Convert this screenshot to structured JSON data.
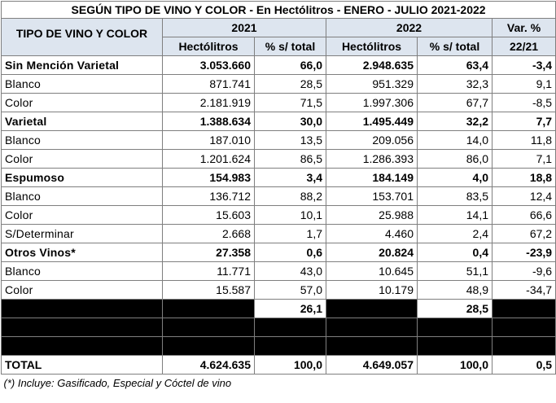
{
  "title": "SEGÚN TIPO DE VINO Y COLOR - En Hectólitros - ENERO - JULIO 2021-2022",
  "header": {
    "row_label": "TIPO DE VINO Y COLOR",
    "year_2021": "2021",
    "year_2022": "2022",
    "var_line1": "Var. %",
    "var_line2": "22/21",
    "hl": "Hectólitros",
    "pct": "% s/ total"
  },
  "rows": [
    {
      "label": "Sin Mención Varietal",
      "h21": "3.053.660",
      "p21": "66,0",
      "h22": "2.948.635",
      "p22": "63,4",
      "var": "-3,4",
      "bold": true
    },
    {
      "label": "Blanco",
      "h21": "871.741",
      "p21": "28,5",
      "h22": "951.329",
      "p22": "32,3",
      "var": "9,1",
      "bold": false
    },
    {
      "label": "Color",
      "h21": "2.181.919",
      "p21": "71,5",
      "h22": "1.997.306",
      "p22": "67,7",
      "var": "-8,5",
      "bold": false
    },
    {
      "label": "Varietal",
      "h21": "1.388.634",
      "p21": "30,0",
      "h22": "1.495.449",
      "p22": "32,2",
      "var": "7,7",
      "bold": true
    },
    {
      "label": "Blanco",
      "h21": "187.010",
      "p21": "13,5",
      "h22": "209.056",
      "p22": "14,0",
      "var": "11,8",
      "bold": false
    },
    {
      "label": "Color",
      "h21": "1.201.624",
      "p21": "86,5",
      "h22": "1.286.393",
      "p22": "86,0",
      "var": "7,1",
      "bold": false
    },
    {
      "label": "Espumoso",
      "h21": "154.983",
      "p21": "3,4",
      "h22": "184.149",
      "p22": "4,0",
      "var": "18,8",
      "bold": true
    },
    {
      "label": "Blanco",
      "h21": "136.712",
      "p21": "88,2",
      "h22": "153.701",
      "p22": "83,5",
      "var": "12,4",
      "bold": false
    },
    {
      "label": "Color",
      "h21": "15.603",
      "p21": "10,1",
      "h22": "25.988",
      "p22": "14,1",
      "var": "66,6",
      "bold": false
    },
    {
      "label": "S/Determinar",
      "h21": "2.668",
      "p21": "1,7",
      "h22": "4.460",
      "p22": "2,4",
      "var": "67,2",
      "bold": false
    },
    {
      "label": "Otros Vinos*",
      "h21": "27.358",
      "p21": "0,6",
      "h22": "20.824",
      "p22": "0,4",
      "var": "-23,9",
      "bold": true
    },
    {
      "label": "Blanco",
      "h21": "11.771",
      "p21": "43,0",
      "h22": "10.645",
      "p22": "51,1",
      "var": "-9,6",
      "bold": false
    },
    {
      "label": "Color",
      "h21": "15.587",
      "p21": "57,0",
      "h22": "10.179",
      "p22": "48,9",
      "var": "-34,7",
      "bold": false
    }
  ],
  "masked_row": {
    "p21": "26,1",
    "p22": "28,5"
  },
  "total": {
    "label": "TOTAL",
    "h21": "4.624.635",
    "p21": "100,0",
    "h22": "4.649.057",
    "p22": "100,0",
    "var": "0,5"
  },
  "footnote": "(*) Incluye: Gasificado, Especial y Cóctel de vino"
}
